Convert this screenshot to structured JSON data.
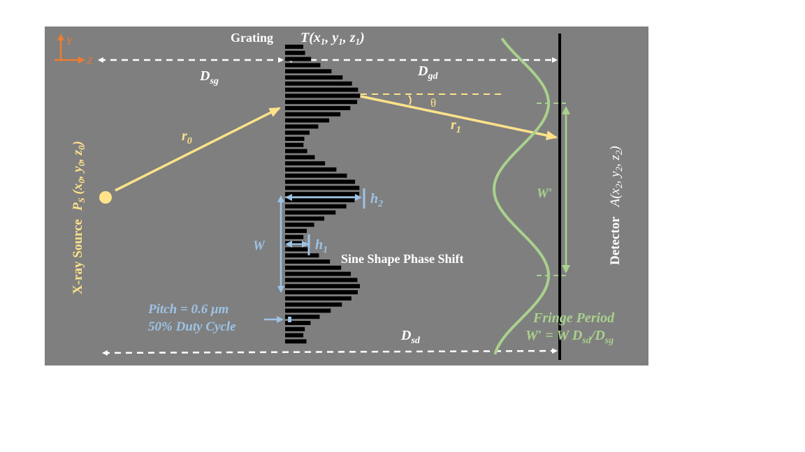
{
  "colors": {
    "background": "#7f7f7f",
    "grating": "#000000",
    "beam": "#ffe28a",
    "blue": "#9dc3e6",
    "green": "#a9d18e",
    "axis": "#ed7d31",
    "white": "#ffffff"
  },
  "axes": {
    "y_label": "Y",
    "z_label": "Z"
  },
  "grating": {
    "title": "Grating",
    "coord_main": "T(x",
    "s1": "1",
    "c2": ", y",
    "s2": "1",
    "c3": ", z",
    "s3": "1",
    "c4": ")",
    "profile": "Sine Shape Phase Shift",
    "pitch": "Pitch = 0.6 μm",
    "duty": "50% Duty Cycle",
    "h1": "h",
    "h1_sub": "1",
    "h2": "h",
    "h2_sub": "2",
    "w": "W"
  },
  "distances": {
    "dsg": "D",
    "dsg_sub": "sg",
    "dgd": "D",
    "dgd_sub": "gd",
    "dsd": "D",
    "dsd_sub": "sd"
  },
  "rays": {
    "r0": "r",
    "r0_sub": "0",
    "r1": "r",
    "r1_sub": "1",
    "theta": "θ"
  },
  "source": {
    "label": "X-ray Source",
    "ps": "P",
    "ps_sub": "S",
    "coord_a": " (x",
    "s0a": "0",
    "coord_b": ", y",
    "s0b": "0",
    "coord_c": ", z",
    "s0c": "0",
    "coord_d": ")"
  },
  "detector": {
    "label": "Detector",
    "coord_a": "A(x",
    "s2a": "2",
    "coord_b": ", y",
    "s2b": "2",
    "coord_c": ", z",
    "s2c": "2",
    "coord_d": ")"
  },
  "fringe": {
    "title": "Fringe Period",
    "w_prime": "W′",
    "formula_a": "W′ = W  D",
    "sub_a": "sd",
    "formula_b": "/D",
    "sub_b": "sg"
  }
}
